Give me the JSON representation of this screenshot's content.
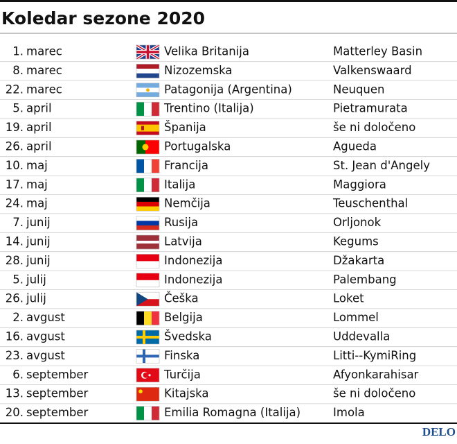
{
  "header": {
    "title": "Koledar sezone 2020"
  },
  "table": {
    "rows": [
      [
        "1.",
        "marec",
        "Velika Britanija",
        "Matterley Basin"
      ],
      [
        "8.",
        "marec",
        "Nizozemska",
        "Valkenswaard"
      ],
      [
        "22.",
        "marec",
        "Patagonija (Argentina)",
        "Neuquen"
      ],
      [
        "5.",
        "april",
        "Trentino (Italija)",
        "Pietramurata"
      ],
      [
        "19.",
        "april",
        "Španija",
        "še ni določeno"
      ],
      [
        "26.",
        "april",
        "Portugalska",
        "Agueda"
      ],
      [
        "10.",
        "maj",
        "Francija",
        "St. Jean d'Angely"
      ],
      [
        "17.",
        "maj",
        "Italija",
        "Maggiora"
      ],
      [
        "24.",
        "maj",
        "Nemčija",
        "Teuschenthal"
      ],
      [
        "7.",
        "junij",
        "Rusija",
        "Orljonok"
      ],
      [
        "14.",
        "junij",
        "Latvija",
        "Kegums"
      ],
      [
        "28.",
        "junij",
        "Indonezija",
        "Džakarta"
      ],
      [
        "5.",
        "julij",
        "Indonezija",
        "Palembang"
      ],
      [
        "26.",
        "julij",
        "Češka",
        "Loket"
      ],
      [
        "2.",
        "avgust",
        "Belgija",
        "Lommel"
      ],
      [
        "16.",
        "avgust",
        "Švedska",
        "Uddevalla"
      ],
      [
        "23.",
        "avgust",
        "Finska",
        "Litti--KymiRing"
      ],
      [
        "6.",
        "september",
        "Turčija",
        "Afyonkarahisar"
      ],
      [
        "13.",
        "september",
        "Kitajska",
        "še ni določeno"
      ],
      [
        "20.",
        "september",
        "Emilia Romagna (Italija)",
        "Imola"
      ]
    ]
  },
  "footer": {
    "logo": "DELO"
  }
}
